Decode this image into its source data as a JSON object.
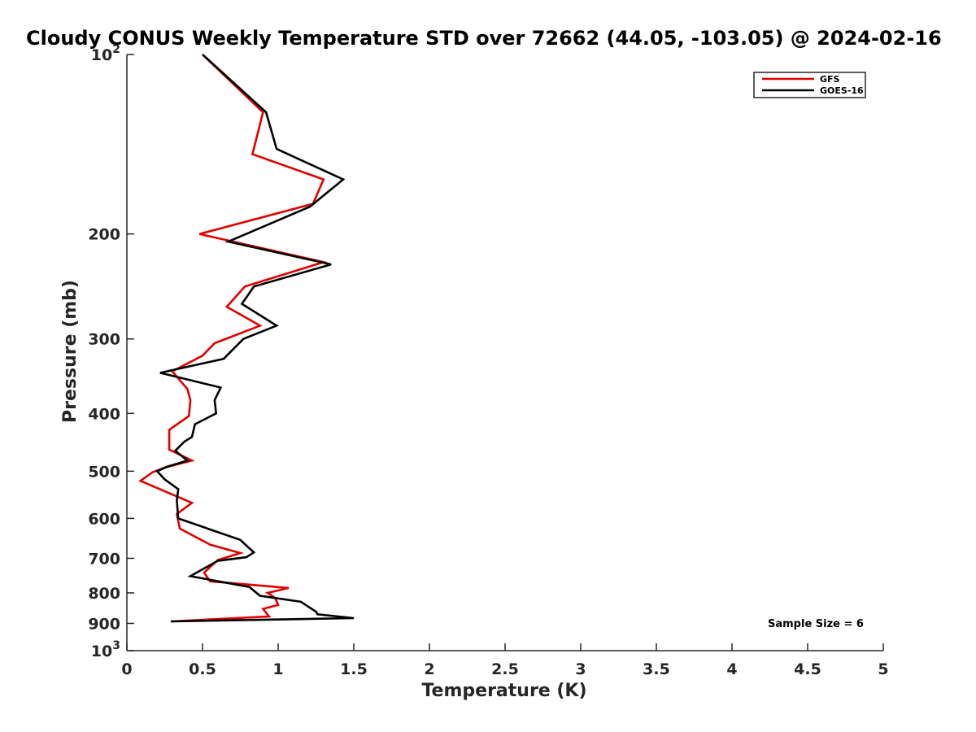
{
  "chart_data": {
    "type": "line",
    "title": "Cloudy CONUS Weekly Temperature STD over 72662 (44.05, -103.05) @ 2024-02-16",
    "xlabel": "Temperature (K)",
    "ylabel": "Pressure (mb)",
    "xlim": [
      0,
      5
    ],
    "ylim": [
      100,
      1000
    ],
    "y_scale": "log",
    "y_reversed": true,
    "x_ticks": [
      "0",
      "0.5",
      "1",
      "1.5",
      "2",
      "2.5",
      "3",
      "3.5",
      "4",
      "4.5",
      "5"
    ],
    "y_ticks": [
      {
        "value": 100,
        "base": "10",
        "exp": "2"
      },
      {
        "value": 200,
        "label": "200"
      },
      {
        "value": 300,
        "label": "300"
      },
      {
        "value": 400,
        "label": "400"
      },
      {
        "value": 500,
        "label": "500"
      },
      {
        "value": 600,
        "label": "600"
      },
      {
        "value": 700,
        "label": "700"
      },
      {
        "value": 800,
        "label": "800"
      },
      {
        "value": 900,
        "label": "900"
      },
      {
        "value": 1000,
        "base": "10",
        "exp": "3"
      }
    ],
    "grid": false,
    "legend_position": "top-right",
    "series": [
      {
        "name": "GFS",
        "color": "#e00000",
        "points": [
          [
            0.5,
            100
          ],
          [
            0.9,
            125
          ],
          [
            0.83,
            147
          ],
          [
            1.3,
            162
          ],
          [
            1.23,
            178
          ],
          [
            0.48,
            200
          ],
          [
            1.3,
            223
          ],
          [
            0.78,
            245
          ],
          [
            0.66,
            265
          ],
          [
            0.88,
            285
          ],
          [
            0.58,
            305
          ],
          [
            0.5,
            320
          ],
          [
            0.3,
            340
          ],
          [
            0.4,
            364
          ],
          [
            0.42,
            380
          ],
          [
            0.41,
            404
          ],
          [
            0.28,
            426
          ],
          [
            0.28,
            460
          ],
          [
            0.43,
            480
          ],
          [
            0.25,
            493
          ],
          [
            0.17,
            502
          ],
          [
            0.09,
            519
          ],
          [
            0.43,
            565
          ],
          [
            0.33,
            590
          ],
          [
            0.35,
            624
          ],
          [
            0.55,
            664
          ],
          [
            0.75,
            686
          ],
          [
            0.6,
            705
          ],
          [
            0.51,
            740
          ],
          [
            0.55,
            765
          ],
          [
            1.07,
            785
          ],
          [
            0.93,
            800
          ],
          [
            0.98,
            816
          ],
          [
            1.0,
            838
          ],
          [
            0.9,
            851
          ],
          [
            0.94,
            876
          ],
          [
            0.3,
            893
          ]
        ]
      },
      {
        "name": "GOES-16",
        "color": "#000000",
        "points": [
          [
            0.5,
            100
          ],
          [
            0.92,
            125
          ],
          [
            0.99,
            144
          ],
          [
            1.43,
            162
          ],
          [
            1.21,
            180
          ],
          [
            0.67,
            206
          ],
          [
            1.35,
            225
          ],
          [
            0.84,
            245
          ],
          [
            0.76,
            262
          ],
          [
            0.99,
            285
          ],
          [
            0.77,
            300
          ],
          [
            0.64,
            324
          ],
          [
            0.22,
            342
          ],
          [
            0.62,
            362
          ],
          [
            0.58,
            380
          ],
          [
            0.59,
            400
          ],
          [
            0.45,
            417
          ],
          [
            0.43,
            438
          ],
          [
            0.38,
            446
          ],
          [
            0.32,
            462
          ],
          [
            0.4,
            480
          ],
          [
            0.27,
            491
          ],
          [
            0.2,
            500
          ],
          [
            0.25,
            516
          ],
          [
            0.34,
            536
          ],
          [
            0.33,
            560
          ],
          [
            0.34,
            600
          ],
          [
            0.75,
            652
          ],
          [
            0.8,
            670
          ],
          [
            0.84,
            684
          ],
          [
            0.79,
            697
          ],
          [
            0.6,
            707
          ],
          [
            0.42,
            750
          ],
          [
            0.81,
            782
          ],
          [
            0.88,
            809
          ],
          [
            1.15,
            828
          ],
          [
            1.25,
            860
          ],
          [
            1.26,
            869
          ],
          [
            1.5,
            882
          ],
          [
            0.29,
            893
          ]
        ]
      }
    ],
    "annotation": "Sample Size = 6"
  }
}
